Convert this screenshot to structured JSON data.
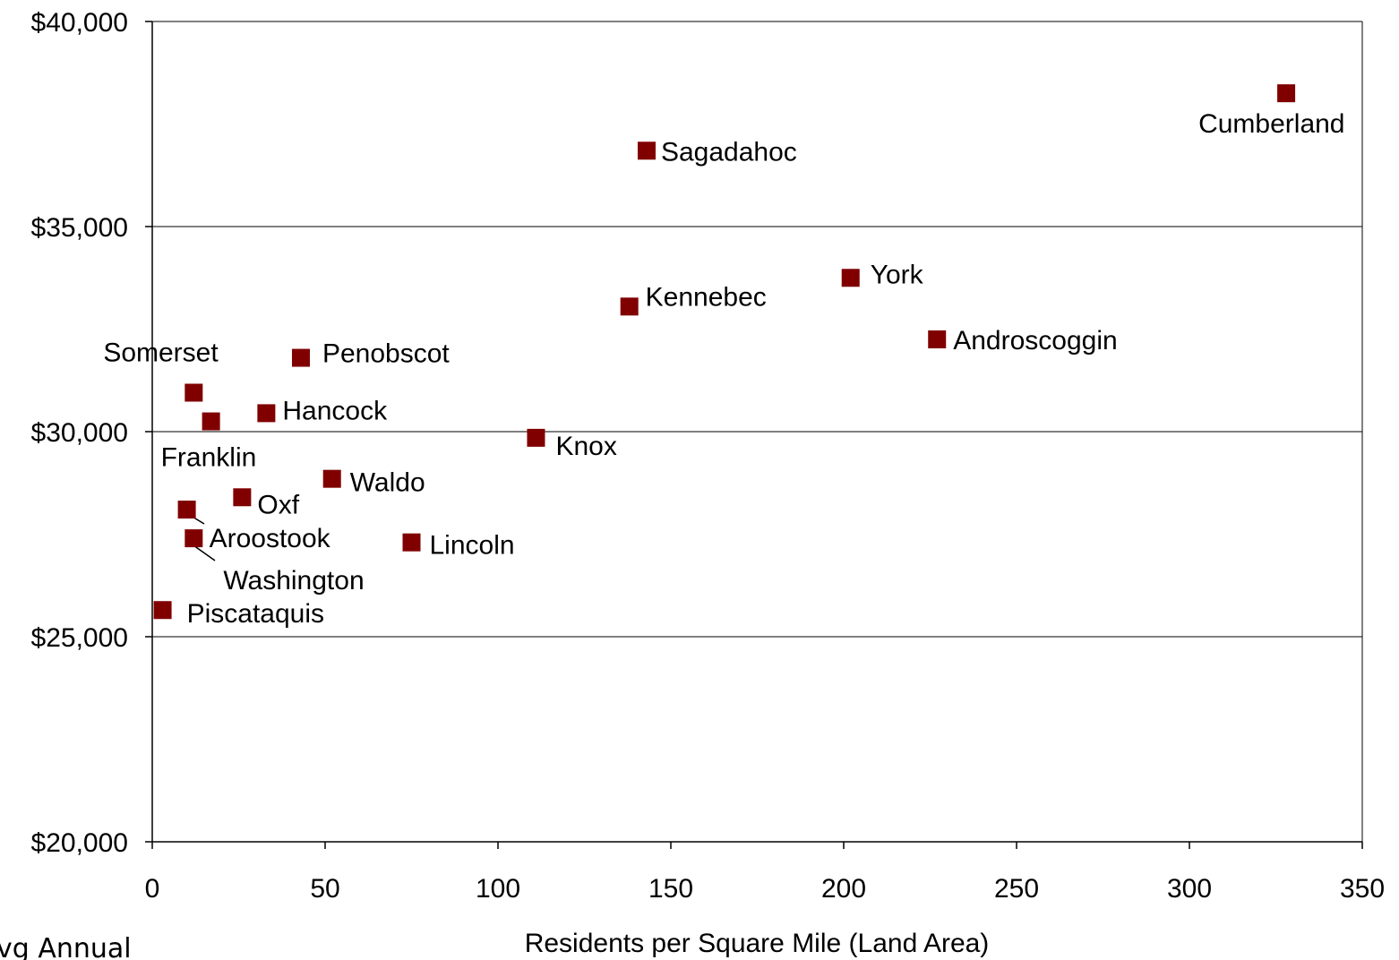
{
  "chart_data": {
    "type": "scatter",
    "xlabel": "Residents per Square Mile (Land Area)",
    "ylabel": "vg Annual",
    "xlim": [
      0,
      350
    ],
    "ylim": [
      20000,
      40000
    ],
    "x_ticks": [
      0,
      50,
      100,
      150,
      200,
      250,
      300,
      350
    ],
    "y_ticks": [
      20000,
      25000,
      30000,
      35000,
      40000
    ],
    "x_tick_labels": [
      "0",
      "50",
      "100",
      "150",
      "200",
      "250",
      "300",
      "350"
    ],
    "y_tick_labels": [
      "$20,000",
      "$25,000",
      "$30,000",
      "$35,000",
      "$40,000"
    ],
    "grid": "horizontal major gridlines",
    "marker_color": "#800000",
    "points": [
      {
        "label": "Cumberland",
        "x": 328,
        "y": 38250
      },
      {
        "label": "Sagadahoc",
        "x": 143,
        "y": 36850
      },
      {
        "label": "York",
        "x": 202,
        "y": 33750
      },
      {
        "label": "Kennebec",
        "x": 138,
        "y": 33050
      },
      {
        "label": "Androscoggin",
        "x": 227,
        "y": 32250
      },
      {
        "label": "Penobscot",
        "x": 43,
        "y": 31800
      },
      {
        "label": "Somerset",
        "x": 12,
        "y": 30950
      },
      {
        "label": "Hancock",
        "x": 33,
        "y": 30450
      },
      {
        "label": "Franklin",
        "x": 17,
        "y": 30250
      },
      {
        "label": "Knox",
        "x": 111,
        "y": 29850
      },
      {
        "label": "Waldo",
        "x": 52,
        "y": 28850
      },
      {
        "label": "Oxf",
        "x": 26,
        "y": 28400
      },
      {
        "label": "Aroostook",
        "x": 10,
        "y": 28100
      },
      {
        "label": "Washington",
        "x": 12,
        "y": 27400
      },
      {
        "label": "Lincoln",
        "x": 75,
        "y": 27300
      },
      {
        "label": "Piscataquis",
        "x": 3,
        "y": 25650
      }
    ]
  }
}
